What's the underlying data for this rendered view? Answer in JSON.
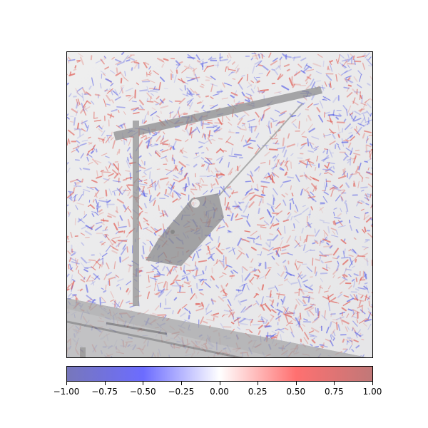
{
  "image": {
    "description_colors": {
      "background": "#ececec",
      "structure": "#8f8f8f",
      "positive": "#e0574f",
      "negative": "#5b62e6"
    }
  },
  "colorbar": {
    "min": -1.0,
    "max": 1.0,
    "colors": [
      "#7777bb",
      "#6c6cff",
      "#ffffff",
      "#ff7070",
      "#c07878"
    ],
    "ticks": [
      "−1.00",
      "−0.75",
      "−0.50",
      "−0.25",
      "0.00",
      "0.25",
      "0.50",
      "0.75",
      "1.00"
    ]
  }
}
